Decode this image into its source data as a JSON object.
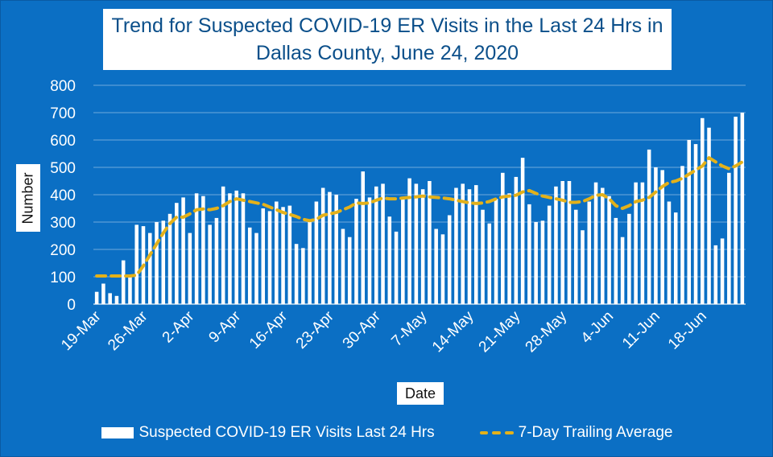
{
  "title_line1": "Trend for Suspected COVID-19 ER Visits in the Last 24 Hrs in",
  "title_line2": "Dallas County, June 24, 2020",
  "colors": {
    "background": "#0b6fc4",
    "bars": "#ffffff",
    "average_line": "#e3b11a"
  },
  "chart_data": {
    "type": "bar",
    "title": "Trend for Suspected COVID-19 ER Visits in the Last 24 Hrs in Dallas County, June 24, 2020",
    "xlabel": "Date",
    "ylabel": "Number",
    "ylim": [
      0,
      800
    ],
    "yticks": [
      0,
      100,
      200,
      300,
      400,
      500,
      600,
      700,
      800
    ],
    "xtick_labels": [
      "19-Mar",
      "26-Mar",
      "2-Apr",
      "9-Apr",
      "16-Apr",
      "23-Apr",
      "30-Apr",
      "7-May",
      "14-May",
      "21-May",
      "28-May",
      "4-Jun",
      "11-Jun",
      "18-Jun"
    ],
    "grid": true,
    "legend_position": "bottom",
    "start_date": "2020-03-19",
    "end_date": "2020-06-24",
    "series": [
      {
        "name": "Suspected COVID-19 ER Visits Last 24 Hrs",
        "type": "bar",
        "values": [
          45,
          75,
          40,
          30,
          160,
          100,
          290,
          285,
          260,
          300,
          305,
          330,
          370,
          390,
          260,
          405,
          395,
          290,
          315,
          430,
          405,
          415,
          405,
          280,
          260,
          350,
          340,
          375,
          355,
          360,
          220,
          205,
          300,
          375,
          425,
          410,
          400,
          275,
          245,
          385,
          485,
          390,
          430,
          440,
          320,
          265,
          385,
          460,
          440,
          420,
          450,
          275,
          255,
          325,
          425,
          440,
          420,
          435,
          345,
          295,
          385,
          480,
          405,
          465,
          535,
          365,
          300,
          305,
          360,
          430,
          450,
          450,
          345,
          270,
          375,
          445,
          425,
          395,
          315,
          245,
          330,
          445,
          445,
          565,
          500,
          490,
          375,
          335,
          505,
          600,
          585,
          680,
          645,
          215,
          240,
          480,
          685,
          700
        ]
      },
      {
        "name": "7-Day Trailing Average",
        "type": "line",
        "style": "dashed",
        "values": [
          103,
          103,
          103,
          103,
          103,
          103,
          106,
          140,
          180,
          220,
          260,
          295,
          318,
          318,
          330,
          345,
          348,
          345,
          350,
          360,
          375,
          385,
          380,
          375,
          370,
          365,
          355,
          345,
          335,
          328,
          320,
          310,
          305,
          310,
          325,
          330,
          335,
          345,
          355,
          370,
          368,
          370,
          380,
          388,
          385,
          385,
          388,
          390,
          392,
          395,
          392,
          390,
          388,
          385,
          380,
          375,
          370,
          368,
          370,
          375,
          385,
          392,
          395,
          398,
          410,
          415,
          405,
          395,
          390,
          385,
          380,
          372,
          372,
          375,
          385,
          398,
          400,
          385,
          360,
          350,
          360,
          375,
          380,
          390,
          410,
          430,
          445,
          450,
          460,
          475,
          490,
          505,
          535,
          520,
          505,
          495,
          505,
          520
        ]
      }
    ]
  }
}
